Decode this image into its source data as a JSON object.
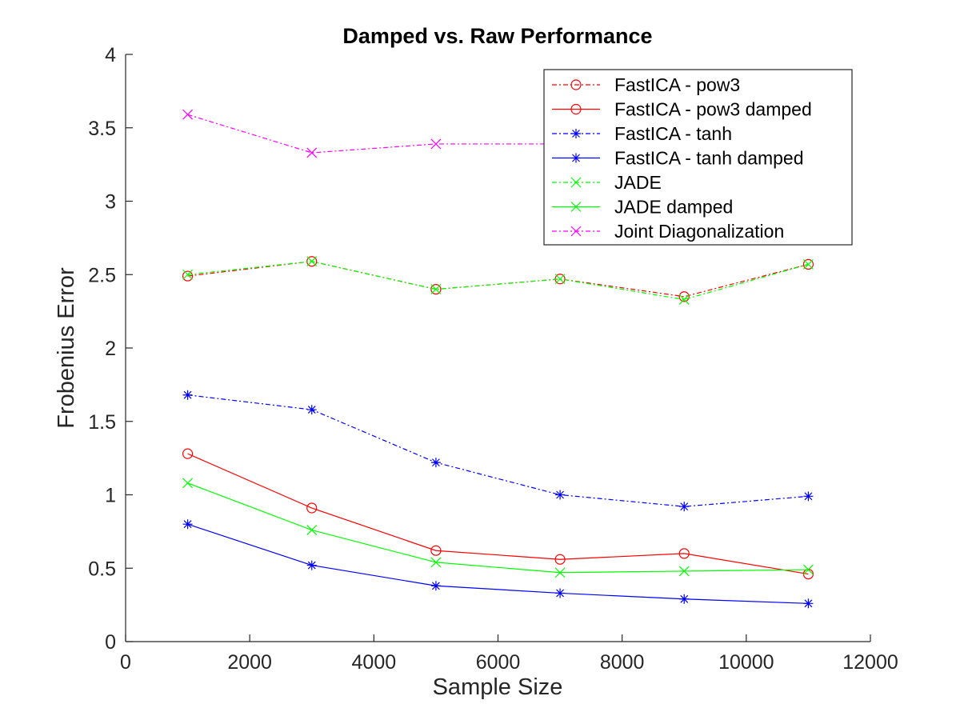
{
  "chart_data": {
    "type": "line",
    "title": "Damped vs. Raw Performance",
    "xlabel": "Sample Size",
    "ylabel": "Frobenius Error",
    "xlim": [
      0,
      12000
    ],
    "ylim": [
      0,
      4
    ],
    "xticks": [
      0,
      2000,
      4000,
      6000,
      8000,
      10000,
      12000
    ],
    "yticks": [
      0,
      0.5,
      1,
      1.5,
      2,
      2.5,
      3,
      3.5,
      4
    ],
    "xtick_labels": [
      "0",
      "2000",
      "4000",
      "6000",
      "8000",
      "10000",
      "12000"
    ],
    "ytick_labels": [
      "0",
      "0.5",
      "1",
      "1.5",
      "2",
      "2.5",
      "3",
      "3.5",
      "4"
    ],
    "grid": false,
    "legend_position": "top-right",
    "x": [
      1000,
      3000,
      5000,
      7000,
      9000,
      11000
    ],
    "series": [
      {
        "name": "FastICA - pow3",
        "color": "#ff0000",
        "line_style": "dash-dot",
        "marker": "circle",
        "values": [
          2.49,
          2.59,
          2.4,
          2.47,
          2.35,
          2.57
        ]
      },
      {
        "name": "FastICA - pow3 damped",
        "color": "#ff0000",
        "line_style": "solid",
        "marker": "circle",
        "values": [
          1.28,
          0.91,
          0.62,
          0.56,
          0.6,
          0.46
        ]
      },
      {
        "name": "FastICA - tanh",
        "color": "#0000ff",
        "line_style": "dash-dot",
        "marker": "asterisk",
        "values": [
          1.68,
          1.58,
          1.22,
          1.0,
          0.92,
          0.99
        ]
      },
      {
        "name": "FastICA - tanh damped",
        "color": "#0000ff",
        "line_style": "solid",
        "marker": "asterisk",
        "values": [
          0.8,
          0.52,
          0.38,
          0.33,
          0.29,
          0.26
        ]
      },
      {
        "name": "JADE",
        "color": "#00ff00",
        "line_style": "dash-dot",
        "marker": "cross",
        "values": [
          2.5,
          2.59,
          2.4,
          2.47,
          2.33,
          2.57
        ]
      },
      {
        "name": "JADE damped",
        "color": "#00ff00",
        "line_style": "solid",
        "marker": "cross",
        "values": [
          1.08,
          0.76,
          0.54,
          0.47,
          0.48,
          0.49
        ]
      },
      {
        "name": "Joint Diagonalization",
        "color": "#ff00ff",
        "line_style": "dash-dot",
        "marker": "cross",
        "values": [
          3.59,
          3.33,
          3.39,
          3.39,
          3.39,
          3.39
        ]
      }
    ]
  }
}
